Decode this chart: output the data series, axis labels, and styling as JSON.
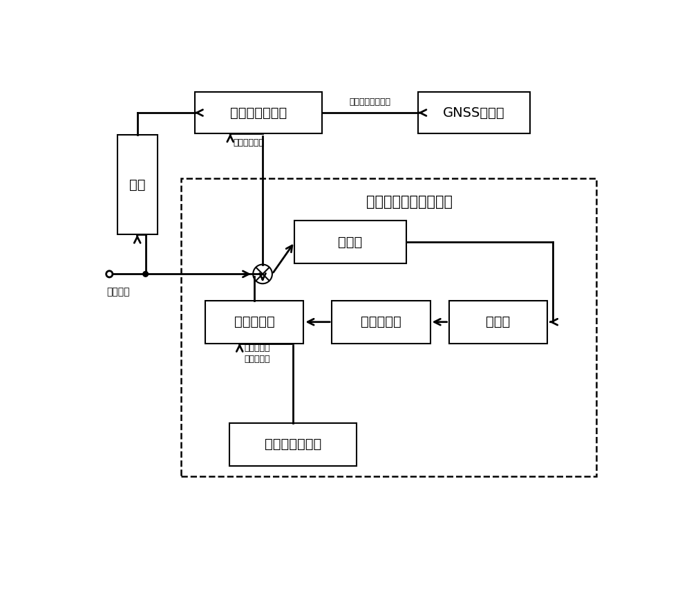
{
  "bg_color": "#ffffff",
  "dashed_label": "干扰参考信号生成模块",
  "box_adaptive_label": "自适应信号处理",
  "box_gnss_label": "GNSS接收机",
  "box_buffer_label": "缓存",
  "box_integrator_label": "积分器",
  "box_discriminator_label": "鉴频器",
  "box_loopfilter_label": "环路滤波器",
  "box_nco_label": "数控振荡器",
  "box_power_label": "功率谱估计模块",
  "label_input": "输入信号",
  "label_filtered": "滤除干扰后的信号",
  "label_ref": "参考干扰信号",
  "label_init_line1": "初始加载干",
  "label_init_line2": "扰频率估值"
}
